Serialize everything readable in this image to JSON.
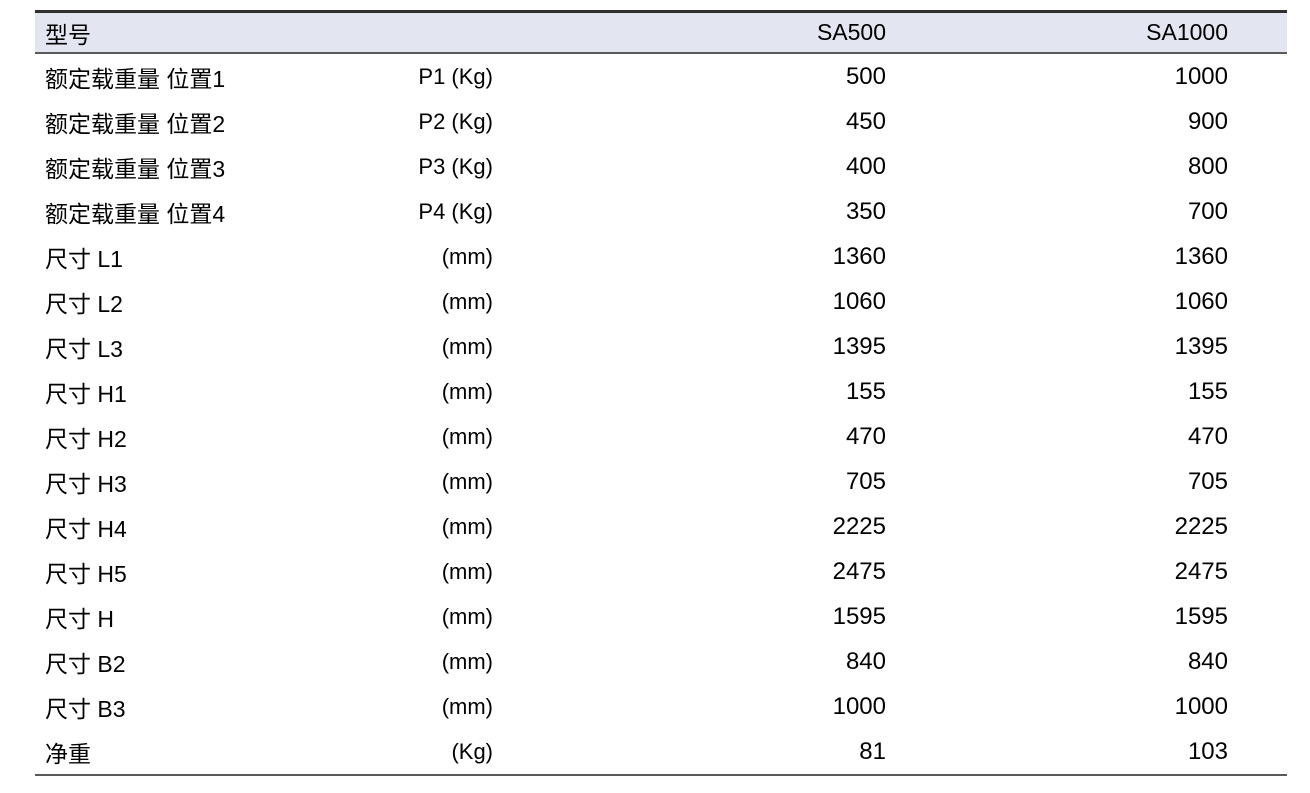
{
  "table": {
    "header": {
      "model_label": "型号",
      "unit_label": "",
      "col_sa500": "SA500",
      "col_sa1000": "SA1000"
    },
    "rows": [
      {
        "label": "额定载重量 位置1",
        "unit": "P1 (Kg)",
        "sa500": "500",
        "sa1000": "1000"
      },
      {
        "label": "额定载重量 位置2",
        "unit": "P2 (Kg)",
        "sa500": "450",
        "sa1000": "900"
      },
      {
        "label": "额定载重量 位置3",
        "unit": "P3 (Kg)",
        "sa500": "400",
        "sa1000": "800"
      },
      {
        "label": "额定载重量 位置4",
        "unit": "P4 (Kg)",
        "sa500": "350",
        "sa1000": "700"
      },
      {
        "label": "尺寸 L1",
        "unit": "(mm)",
        "sa500": "1360",
        "sa1000": "1360"
      },
      {
        "label": "尺寸 L2",
        "unit": "(mm)",
        "sa500": "1060",
        "sa1000": "1060"
      },
      {
        "label": "尺寸 L3",
        "unit": "(mm)",
        "sa500": "1395",
        "sa1000": "1395"
      },
      {
        "label": "尺寸 H1",
        "unit": "(mm)",
        "sa500": "155",
        "sa1000": "155"
      },
      {
        "label": "尺寸 H2",
        "unit": "(mm)",
        "sa500": "470",
        "sa1000": "470"
      },
      {
        "label": "尺寸 H3",
        "unit": "(mm)",
        "sa500": "705",
        "sa1000": "705"
      },
      {
        "label": "尺寸 H4",
        "unit": "(mm)",
        "sa500": "2225",
        "sa1000": "2225"
      },
      {
        "label": "尺寸 H5",
        "unit": "(mm)",
        "sa500": "2475",
        "sa1000": "2475"
      },
      {
        "label": "尺寸 H",
        "unit": "(mm)",
        "sa500": "1595",
        "sa1000": "1595"
      },
      {
        "label": "尺寸 B2",
        "unit": "(mm)",
        "sa500": "840",
        "sa1000": "840"
      },
      {
        "label": "尺寸 B3",
        "unit": "(mm)",
        "sa500": "1000",
        "sa1000": "1000"
      },
      {
        "label": "净重",
        "unit": "(Kg)",
        "sa500": "81",
        "sa1000": "103"
      }
    ]
  },
  "colors": {
    "header_bg": "#e3e5f0",
    "rule_top": "#2f2f2f",
    "rule_gray": "#5a5a5a",
    "text": "#000000",
    "page_bg": "#ffffff"
  }
}
